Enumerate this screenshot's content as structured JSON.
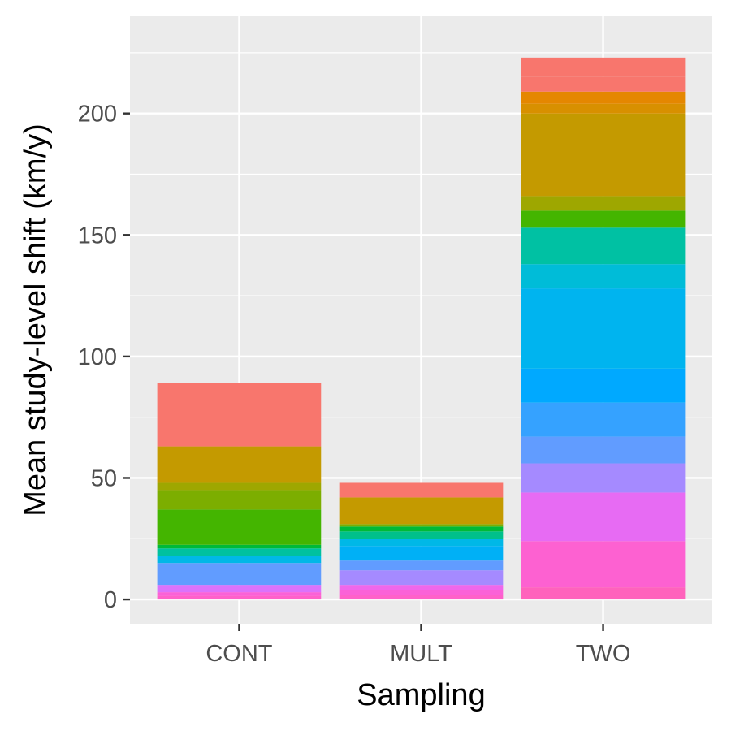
{
  "chart_data": {
    "type": "bar",
    "stacked": true,
    "xlabel": "Sampling",
    "ylabel": "Mean study-level shift (km/y)",
    "categories": [
      "CONT",
      "MULT",
      "TWO"
    ],
    "ylim": [
      -10,
      240
    ],
    "yticks": [
      0,
      50,
      100,
      150,
      200
    ],
    "grid": true,
    "legend": "none",
    "panel_color": "#ebebeb",
    "grid_color": "#ffffff",
    "stacks": [
      {
        "category": "CONT",
        "segments": [
          {
            "value": 1.5,
            "color": "#ff61c9"
          },
          {
            "value": 1.5,
            "color": "#fb61d7"
          },
          {
            "value": 3.0,
            "color": "#db72fb"
          },
          {
            "value": 9.0,
            "color": "#619cff"
          },
          {
            "value": 3.0,
            "color": "#00b8e7"
          },
          {
            "value": 3.0,
            "color": "#00c19f"
          },
          {
            "value": 1.5,
            "color": "#00ba38"
          },
          {
            "value": 14.5,
            "color": "#44b500"
          },
          {
            "value": 8.0,
            "color": "#7cae00"
          },
          {
            "value": 3.0,
            "color": "#9ea700"
          },
          {
            "value": 15.0,
            "color": "#c49a00"
          },
          {
            "value": 26.0,
            "color": "#f8766d"
          }
        ]
      },
      {
        "category": "MULT",
        "segments": [
          {
            "value": 2.0,
            "color": "#ff61c9"
          },
          {
            "value": 2.0,
            "color": "#fb61d7"
          },
          {
            "value": 2.0,
            "color": "#ef67eb"
          },
          {
            "value": 6.0,
            "color": "#a58aff"
          },
          {
            "value": 4.0,
            "color": "#619cff"
          },
          {
            "value": 6.0,
            "color": "#00b0f6"
          },
          {
            "value": 3.0,
            "color": "#00b8e7"
          },
          {
            "value": 3.0,
            "color": "#00c08b"
          },
          {
            "value": 2.0,
            "color": "#00ba38"
          },
          {
            "value": 1.0,
            "color": "#7cae00"
          },
          {
            "value": 11.0,
            "color": "#c49a00"
          },
          {
            "value": 6.0,
            "color": "#f8766d"
          }
        ]
      },
      {
        "category": "TWO",
        "segments": [
          {
            "value": 5.0,
            "color": "#ff62bc"
          },
          {
            "value": 19.0,
            "color": "#fd61d1"
          },
          {
            "value": 20.0,
            "color": "#e76bf3"
          },
          {
            "value": 12.0,
            "color": "#a58aff"
          },
          {
            "value": 11.0,
            "color": "#619cff"
          },
          {
            "value": 14.0,
            "color": "#35a2ff"
          },
          {
            "value": 14.0,
            "color": "#00a9ff"
          },
          {
            "value": 33.0,
            "color": "#00b4ef"
          },
          {
            "value": 10.0,
            "color": "#00bcd8"
          },
          {
            "value": 15.0,
            "color": "#00c1a3"
          },
          {
            "value": 7.0,
            "color": "#44b500"
          },
          {
            "value": 6.0,
            "color": "#9ea700"
          },
          {
            "value": 34.0,
            "color": "#c49a00"
          },
          {
            "value": 4.0,
            "color": "#d89000"
          },
          {
            "value": 5.0,
            "color": "#e58700"
          },
          {
            "value": 6.0,
            "color": "#f8766d"
          },
          {
            "value": 8.0,
            "color": "#f8766d"
          }
        ]
      }
    ]
  }
}
